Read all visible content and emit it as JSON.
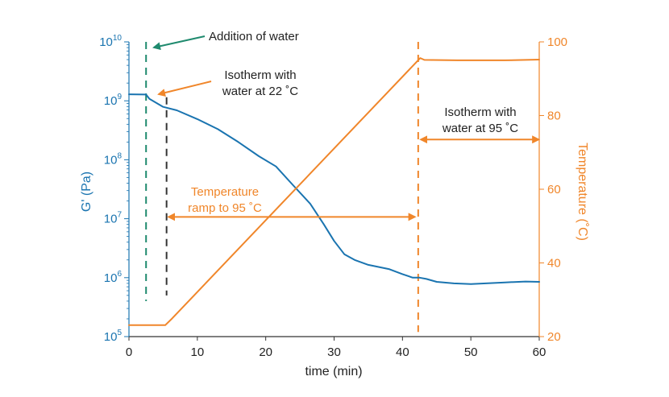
{
  "chart_data": {
    "type": "line",
    "xlabel": "time (min)",
    "xlim": [
      0,
      60
    ],
    "xticks": [
      0,
      10,
      20,
      30,
      40,
      50,
      60
    ],
    "y_left": {
      "label": "G' (Pa)",
      "scale": "log",
      "lim": [
        100000,
        10000000000
      ],
      "tick_labels": [
        {
          "base": "10",
          "exp": "5",
          "value": 100000
        },
        {
          "base": "10",
          "exp": "6",
          "value": 1000000
        },
        {
          "base": "10",
          "exp": "7",
          "value": 10000000
        },
        {
          "base": "10",
          "exp": "8",
          "value": 100000000
        },
        {
          "base": "10",
          "exp": "9",
          "value": 1000000000
        },
        {
          "base": "10",
          "exp": "10",
          "value": 10000000000
        }
      ],
      "color": "#1a74b0"
    },
    "y_right": {
      "label": "Temperature (˚C)",
      "scale": "linear",
      "lim": [
        20,
        100
      ],
      "ticks": [
        20,
        40,
        60,
        80,
        100
      ],
      "color": "#f0862a"
    },
    "series": [
      {
        "axis": "left",
        "color": "#1a74b0",
        "x": [
          0,
          2.5,
          3,
          5,
          7,
          10,
          13,
          16,
          19,
          21.5,
          24,
          26.5,
          28.5,
          30,
          31.5,
          33,
          35,
          38,
          40,
          41.5,
          42.5,
          43.5,
          45,
          47.5,
          50,
          55,
          58,
          60
        ],
        "y": [
          1290000000,
          1280000000,
          1080000000,
          790000000,
          690000000,
          490000000,
          330000000,
          200000000,
          115000000,
          77000000,
          37000000,
          18000000,
          8000000,
          4200000,
          2500000,
          2000000,
          1650000,
          1400000,
          1150000,
          1000000,
          1000000,
          950000,
          850000,
          800000,
          780000,
          830000,
          860000,
          850000
        ]
      },
      {
        "axis": "right",
        "color": "#f0862a",
        "x": [
          0,
          5.3,
          6.3,
          42.6,
          43.2,
          48,
          55,
          60
        ],
        "y": [
          23.1,
          23.1,
          24.9,
          95.6,
          95.1,
          95,
          95,
          95.2
        ]
      }
    ],
    "vlines": [
      {
        "x": 2.5,
        "color": "#1f8a6e",
        "y_left_range": [
          400000,
          10000000000
        ]
      },
      {
        "x": 5.5,
        "color": "#333333",
        "y_left_range": [
          500000,
          1150000000
        ]
      },
      {
        "x": 42.3,
        "color": "#f0862a",
        "y_left_range": [
          120000,
          10000000000
        ]
      }
    ],
    "annotations": [
      {
        "text": "Addition of water",
        "color": "#222222",
        "arrow_color": "#1f8a6e"
      },
      {
        "lines": [
          "Isotherm with",
          "water at 22 ˚C"
        ],
        "color": "#222222",
        "arrow_color": "#f0862a"
      },
      {
        "lines": [
          "Temperature",
          "ramp to 95 ˚C"
        ],
        "color": "#f0862a",
        "arrow_from": 5.8,
        "arrow_to": 41.8,
        "arrow_temp": 52.5
      },
      {
        "lines": [
          "Isotherm with",
          "water at 95 ˚C"
        ],
        "color": "#222222",
        "arrow_from": 42.7,
        "arrow_to": 59.9,
        "arrow_temp": 73.5
      }
    ],
    "grid": false,
    "legend": "none"
  }
}
